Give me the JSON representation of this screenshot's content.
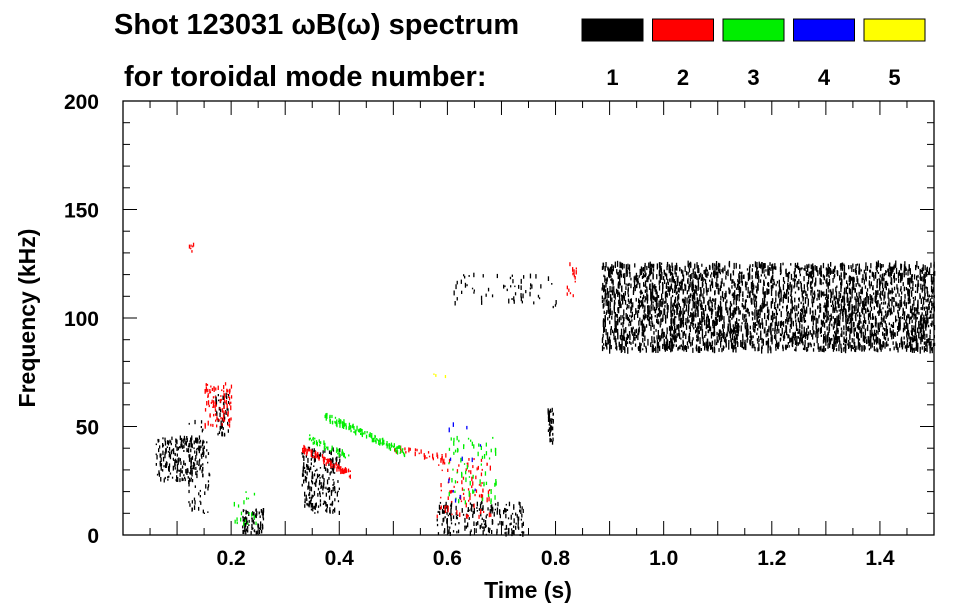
{
  "chart_data": {
    "type": "heatmap",
    "title": "Shot 123031 ωB(ω) spectrum",
    "subtitle": "for toroidal mode number:",
    "xlabel": "Time (s)",
    "ylabel": "Frequency (kHz)",
    "xlim": [
      0.0,
      1.5
    ],
    "ylim": [
      0,
      200
    ],
    "x_ticks": [
      0.2,
      0.4,
      0.6,
      0.8,
      1.0,
      1.2,
      1.4
    ],
    "x_tick_labels": [
      "0.2",
      "0.4",
      "0.6",
      "0.8",
      "1.0",
      "1.2",
      "1.4"
    ],
    "y_ticks": [
      0,
      50,
      100,
      150,
      200
    ],
    "y_tick_labels": [
      "0",
      "50",
      "100",
      "150",
      "200"
    ],
    "legend": [
      {
        "label": "1",
        "color": "#000000"
      },
      {
        "label": "2",
        "color": "#ff0000"
      },
      {
        "label": "3",
        "color": "#00ee00"
      },
      {
        "label": "4",
        "color": "#0000ff"
      },
      {
        "label": "5",
        "color": "#ffff00"
      }
    ],
    "features": [
      {
        "mode": 1,
        "kind": "blob",
        "t": [
          0.06,
          0.15
        ],
        "f": [
          25,
          45
        ],
        "density": 220
      },
      {
        "mode": 1,
        "kind": "blob",
        "t": [
          0.12,
          0.16
        ],
        "f": [
          10,
          55
        ],
        "density": 60
      },
      {
        "mode": 1,
        "kind": "blob",
        "t": [
          0.17,
          0.195
        ],
        "f": [
          45,
          65
        ],
        "density": 50
      },
      {
        "mode": 1,
        "kind": "blob",
        "t": [
          0.22,
          0.26
        ],
        "f": [
          1,
          12
        ],
        "density": 80
      },
      {
        "mode": 1,
        "kind": "blob",
        "t": [
          0.33,
          0.4
        ],
        "f": [
          10,
          40
        ],
        "density": 220
      },
      {
        "mode": 1,
        "kind": "blob",
        "t": [
          0.58,
          0.74
        ],
        "f": [
          0,
          15
        ],
        "density": 200
      },
      {
        "mode": 1,
        "kind": "blob",
        "t": [
          0.785,
          0.795
        ],
        "f": [
          42,
          58
        ],
        "density": 40
      },
      {
        "mode": 1,
        "kind": "blob",
        "t": [
          0.61,
          0.8
        ],
        "f": [
          105,
          120
        ],
        "density": 60
      },
      {
        "mode": 1,
        "kind": "blob",
        "t": [
          0.885,
          1.5
        ],
        "f": [
          85,
          125
        ],
        "density": 3200
      },
      {
        "mode": 2,
        "kind": "blob",
        "t": [
          0.15,
          0.2
        ],
        "f": [
          50,
          70
        ],
        "density": 90
      },
      {
        "mode": 2,
        "kind": "chirp",
        "t": [
          0.33,
          0.42
        ],
        "f0": 40,
        "f1": 28,
        "density": 80
      },
      {
        "mode": 2,
        "kind": "chirp",
        "t": [
          0.5,
          0.6
        ],
        "f0": 40,
        "f1": 35,
        "density": 30
      },
      {
        "mode": 2,
        "kind": "blob",
        "t": [
          0.58,
          0.68
        ],
        "f": [
          8,
          35
        ],
        "density": 90
      },
      {
        "mode": 2,
        "kind": "blob",
        "t": [
          0.12,
          0.13
        ],
        "f": [
          128,
          134
        ],
        "density": 6
      },
      {
        "mode": 2,
        "kind": "blob",
        "t": [
          0.82,
          0.84
        ],
        "f": [
          110,
          125
        ],
        "density": 14
      },
      {
        "mode": 3,
        "kind": "chirp",
        "t": [
          0.37,
          0.52
        ],
        "f0": 55,
        "f1": 38,
        "density": 130
      },
      {
        "mode": 3,
        "kind": "chirp",
        "t": [
          0.34,
          0.42
        ],
        "f0": 45,
        "f1": 35,
        "density": 40
      },
      {
        "mode": 3,
        "kind": "blob",
        "t": [
          0.6,
          0.69
        ],
        "f": [
          15,
          45
        ],
        "density": 70
      },
      {
        "mode": 3,
        "kind": "blob",
        "t": [
          0.2,
          0.25
        ],
        "f": [
          5,
          20
        ],
        "density": 20
      },
      {
        "mode": 4,
        "kind": "blob",
        "t": [
          0.6,
          0.66
        ],
        "f": [
          15,
          55
        ],
        "density": 12
      },
      {
        "mode": 5,
        "kind": "blob",
        "t": [
          0.56,
          0.6
        ],
        "f": [
          72,
          75
        ],
        "density": 3
      }
    ]
  }
}
